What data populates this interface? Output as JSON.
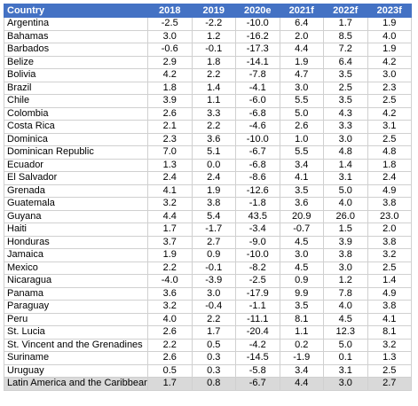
{
  "table": {
    "header": [
      "Country",
      "2018",
      "2019",
      "2020e",
      "2021f",
      "2022f",
      "2023f"
    ],
    "rows": [
      [
        "Argentina",
        "-2.5",
        "-2.2",
        "-10.0",
        "6.4",
        "1.7",
        "1.9"
      ],
      [
        "Bahamas",
        "3.0",
        "1.2",
        "-16.2",
        "2.0",
        "8.5",
        "4.0"
      ],
      [
        "Barbados",
        "-0.6",
        "-0.1",
        "-17.3",
        "4.4",
        "7.2",
        "1.9"
      ],
      [
        "Belize",
        "2.9",
        "1.8",
        "-14.1",
        "1.9",
        "6.4",
        "4.2"
      ],
      [
        "Bolivia",
        "4.2",
        "2.2",
        "-7.8",
        "4.7",
        "3.5",
        "3.0"
      ],
      [
        "Brazil",
        "1.8",
        "1.4",
        "-4.1",
        "3.0",
        "2.5",
        "2.3"
      ],
      [
        "Chile",
        "3.9",
        "1.1",
        "-6.0",
        "5.5",
        "3.5",
        "2.5"
      ],
      [
        "Colombia",
        "2.6",
        "3.3",
        "-6.8",
        "5.0",
        "4.3",
        "4.2"
      ],
      [
        "Costa Rica",
        "2.1",
        "2.2",
        "-4.6",
        "2.6",
        "3.3",
        "3.1"
      ],
      [
        "Dominica",
        "2.3",
        "3.6",
        "-10.0",
        "1.0",
        "3.0",
        "2.5"
      ],
      [
        "Dominican Republic",
        "7.0",
        "5.1",
        "-6.7",
        "5.5",
        "4.8",
        "4.8"
      ],
      [
        "Ecuador",
        "1.3",
        "0.0",
        "-6.8",
        "3.4",
        "1.4",
        "1.8"
      ],
      [
        "El Salvador",
        "2.4",
        "2.4",
        "-8.6",
        "4.1",
        "3.1",
        "2.4"
      ],
      [
        "Grenada",
        "4.1",
        "1.9",
        "-12.6",
        "3.5",
        "5.0",
        "4.9"
      ],
      [
        "Guatemala",
        "3.2",
        "3.8",
        "-1.8",
        "3.6",
        "4.0",
        "3.8"
      ],
      [
        "Guyana",
        "4.4",
        "5.4",
        "43.5",
        "20.9",
        "26.0",
        "23.0"
      ],
      [
        "Haiti",
        "1.7",
        "-1.7",
        "-3.4",
        "-0.7",
        "1.5",
        "2.0"
      ],
      [
        "Honduras",
        "3.7",
        "2.7",
        "-9.0",
        "4.5",
        "3.9",
        "3.8"
      ],
      [
        "Jamaica",
        "1.9",
        "0.9",
        "-10.0",
        "3.0",
        "3.8",
        "3.2"
      ],
      [
        "Mexico",
        "2.2",
        "-0.1",
        "-8.2",
        "4.5",
        "3.0",
        "2.5"
      ],
      [
        "Nicaragua",
        "-4.0",
        "-3.9",
        "-2.5",
        "0.9",
        "1.2",
        "1.4"
      ],
      [
        "Panama",
        "3.6",
        "3.0",
        "-17.9",
        "9.9",
        "7.8",
        "4.9"
      ],
      [
        "Paraguay",
        "3.2",
        "-0.4",
        "-1.1",
        "3.5",
        "4.0",
        "3.8"
      ],
      [
        "Peru",
        "4.0",
        "2.2",
        "-11.1",
        "8.1",
        "4.5",
        "4.1"
      ],
      [
        "St. Lucia",
        "2.6",
        "1.7",
        "-20.4",
        "1.1",
        "12.3",
        "8.1"
      ],
      [
        "St. Vincent and the Grenadines",
        "2.2",
        "0.5",
        "-4.2",
        "0.2",
        "5.0",
        "3.2"
      ],
      [
        "Suriname",
        "2.6",
        "0.3",
        "-14.5",
        "-1.9",
        "0.1",
        "1.3"
      ],
      [
        "Uruguay",
        "0.5",
        "0.3",
        "-5.8",
        "3.4",
        "3.1",
        "2.5"
      ],
      [
        "Latin America and the Caribbean",
        "1.7",
        "0.8",
        "-6.7",
        "4.4",
        "3.0",
        "2.7"
      ]
    ]
  }
}
